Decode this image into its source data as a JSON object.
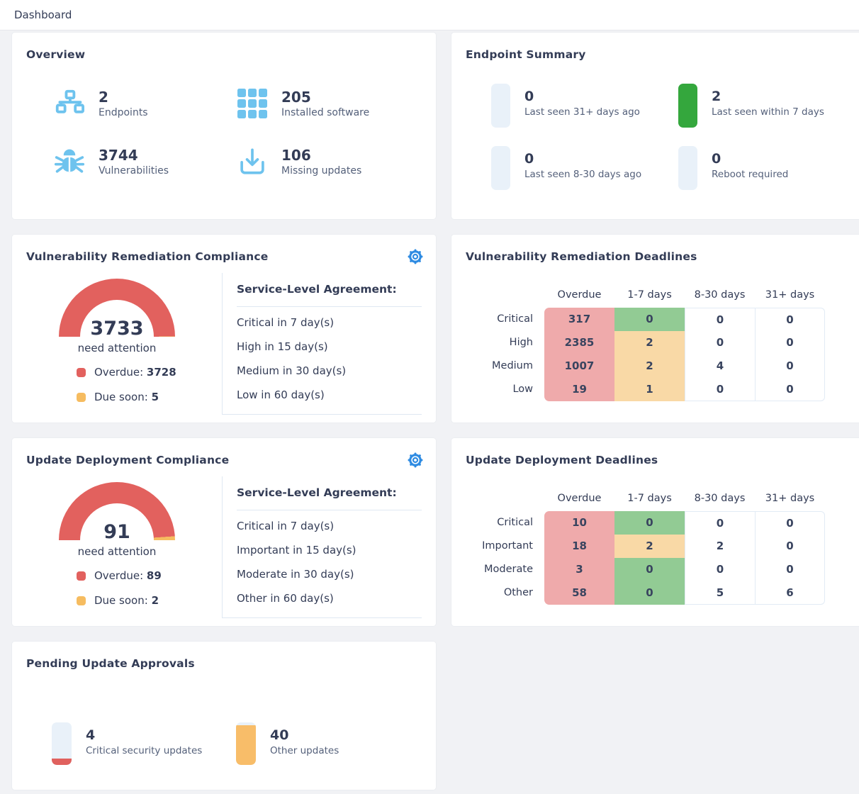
{
  "colors": {
    "bg": "#f1f2f5",
    "navy": "#333c56",
    "label": "#54607a",
    "icon_blue": "#6ec3ee",
    "gear_blue": "#2e8be2",
    "red": "#e2615e",
    "amber": "#f6bc60",
    "green": "#34a73d",
    "light_block": "#e9f1f9",
    "cell_red": "#efaaab",
    "cell_green": "#92cb94",
    "cell_amber": "#f9d9a6",
    "orange": "#f8bd69"
  },
  "header": {
    "title": "Dashboard"
  },
  "overview": {
    "title": "Overview",
    "items": [
      {
        "icon": "endpoints-icon",
        "value": "2",
        "label": "Endpoints"
      },
      {
        "icon": "installed-software-icon",
        "value": "205",
        "label": "Installed software"
      },
      {
        "icon": "vulnerabilities-bug-icon",
        "value": "3744",
        "label": "Vulnerabilities"
      },
      {
        "icon": "missing-updates-download-icon",
        "value": "106",
        "label": "Missing updates"
      }
    ]
  },
  "endpoint_summary": {
    "title": "Endpoint Summary",
    "items": [
      {
        "value": "0",
        "label": "Last seen 31+ days ago",
        "bar_color": "#e9f1f9"
      },
      {
        "value": "2",
        "label": "Last seen within 7 days",
        "bar_color": "#34a73d"
      },
      {
        "value": "0",
        "label": "Last seen 8-30 days ago",
        "bar_color": "#e9f1f9"
      },
      {
        "value": "0",
        "label": "Reboot required",
        "bar_color": "#e9f1f9"
      }
    ]
  },
  "vuln_compliance": {
    "title": "Vulnerability Remediation Compliance",
    "gauge": {
      "value": "3733",
      "caption": "need attention",
      "overdue": 3728,
      "due_soon": 5
    },
    "legend": {
      "overdue_label": "Overdue:",
      "overdue_value": "3728",
      "due_soon_label": "Due soon:",
      "due_soon_value": "5"
    },
    "sla": {
      "heading": "Service-Level Agreement:",
      "items": [
        "Critical in 7 day(s)",
        "High in 15 day(s)",
        "Medium in 30 day(s)",
        "Low in 60 day(s)"
      ]
    }
  },
  "vuln_deadlines": {
    "title": "Vulnerability Remediation Deadlines",
    "columns": [
      "Overdue",
      "1-7 days",
      "8-30 days",
      "31+ days"
    ],
    "rows": [
      {
        "label": "Critical",
        "values": [
          "317",
          "0",
          "0",
          "0"
        ],
        "soon": "green"
      },
      {
        "label": "High",
        "values": [
          "2385",
          "2",
          "0",
          "0"
        ],
        "soon": "amber"
      },
      {
        "label": "Medium",
        "values": [
          "1007",
          "2",
          "4",
          "0"
        ],
        "soon": "amber"
      },
      {
        "label": "Low",
        "values": [
          "19",
          "1",
          "0",
          "0"
        ],
        "soon": "amber"
      }
    ]
  },
  "update_compliance": {
    "title": "Update Deployment Compliance",
    "gauge": {
      "value": "91",
      "caption": "need attention",
      "overdue": 89,
      "due_soon": 2
    },
    "legend": {
      "overdue_label": "Overdue:",
      "overdue_value": "89",
      "due_soon_label": "Due soon:",
      "due_soon_value": "2"
    },
    "sla": {
      "heading": "Service-Level Agreement:",
      "items": [
        "Critical in 7 day(s)",
        "Important in 15 day(s)",
        "Moderate in 30 day(s)",
        "Other in 60 day(s)"
      ]
    }
  },
  "update_deadlines": {
    "title": "Update Deployment Deadlines",
    "columns": [
      "Overdue",
      "1-7 days",
      "8-30 days",
      "31+ days"
    ],
    "rows": [
      {
        "label": "Critical",
        "values": [
          "10",
          "0",
          "0",
          "0"
        ],
        "soon": "green"
      },
      {
        "label": "Important",
        "values": [
          "18",
          "2",
          "2",
          "0"
        ],
        "soon": "amber"
      },
      {
        "label": "Moderate",
        "values": [
          "3",
          "0",
          "0",
          "0"
        ],
        "soon": "green"
      },
      {
        "label": "Other",
        "values": [
          "58",
          "0",
          "5",
          "6"
        ],
        "soon": "green"
      }
    ]
  },
  "pending_approvals": {
    "title": "Pending Update Approvals",
    "items": [
      {
        "value": "4",
        "label": "Critical security updates",
        "fill_color": "#e0615e",
        "fill_pct": 15
      },
      {
        "value": "40",
        "label": "Other updates",
        "fill_color": "#f8bd69",
        "fill_pct": 93
      }
    ]
  }
}
